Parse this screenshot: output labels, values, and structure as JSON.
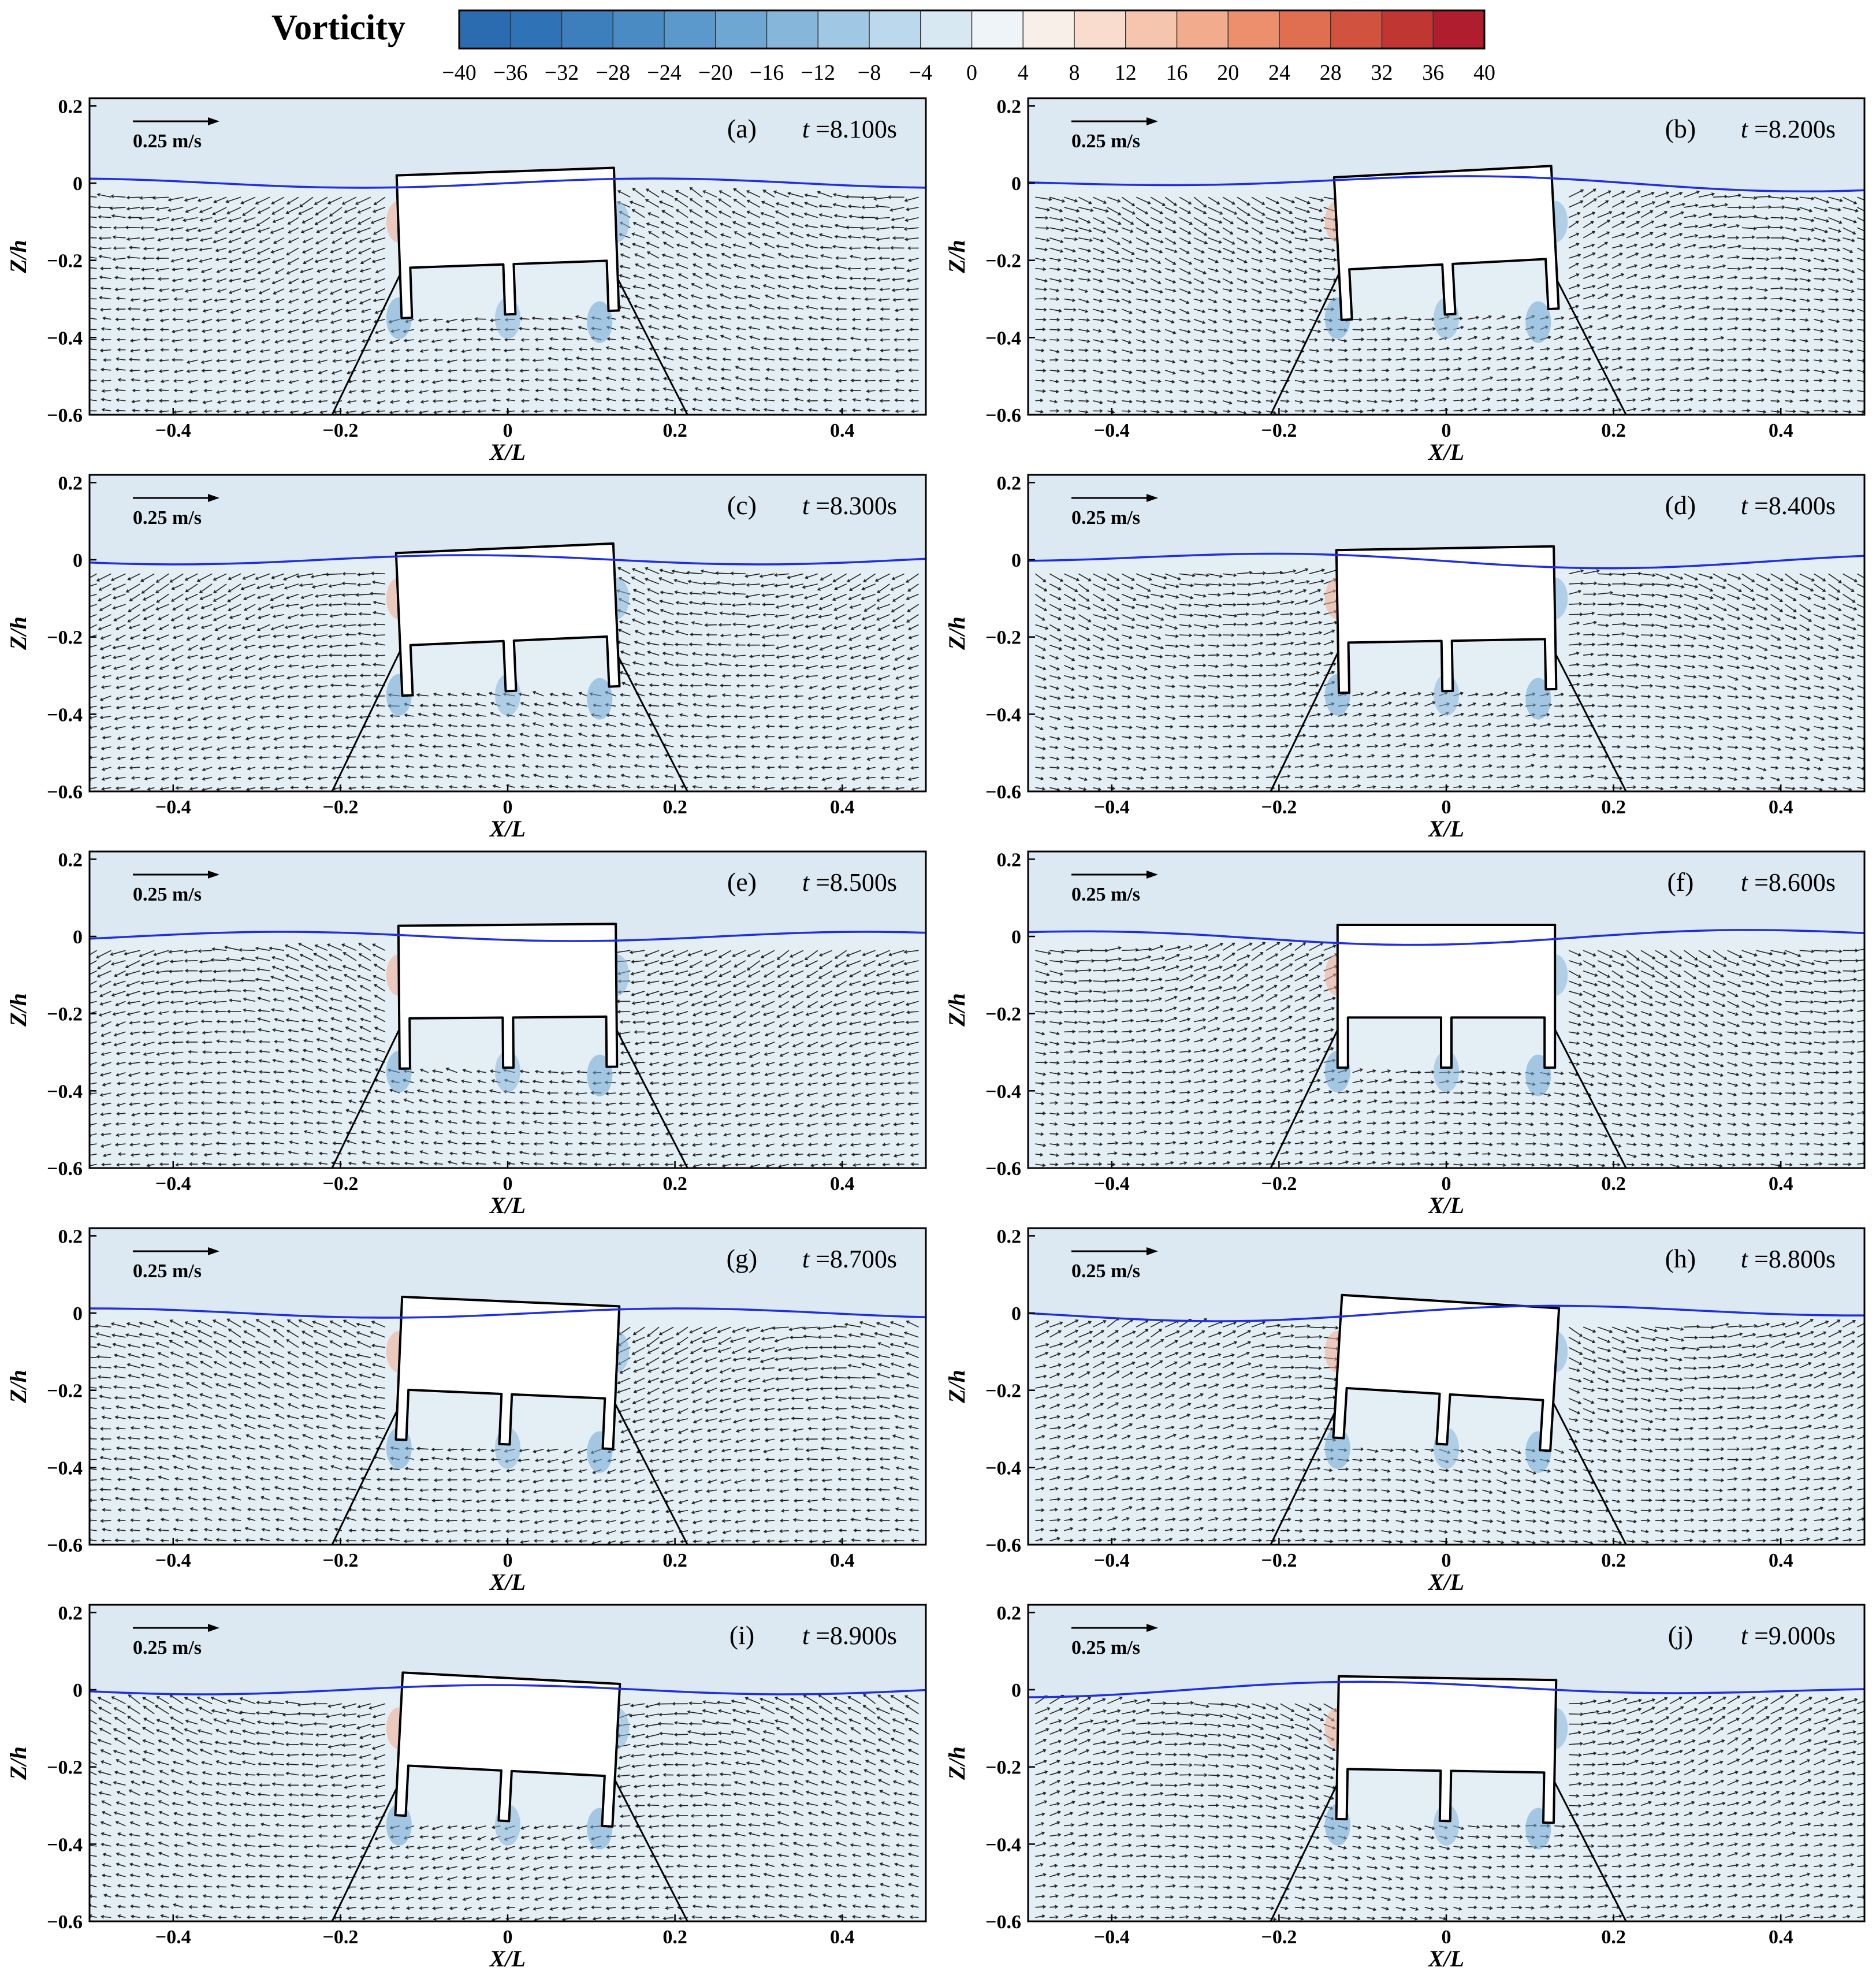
{
  "chart_data": {
    "type": "vector-field",
    "colorbar": {
      "title": "Vorticity",
      "min": -40,
      "max": 40,
      "ticks": [
        -40,
        -36,
        -32,
        -28,
        -24,
        -20,
        -16,
        -12,
        -8,
        -4,
        0,
        4,
        8,
        12,
        16,
        20,
        24,
        28,
        32,
        36,
        40
      ],
      "tick_labels": [
        "−40",
        "−36",
        "−32",
        "−28",
        "−24",
        "−20",
        "−16",
        "−12",
        "−8",
        "−4",
        "0",
        "4",
        "8",
        "12",
        "16",
        "20",
        "24",
        "28",
        "32",
        "36",
        "40"
      ],
      "colors": [
        "#2b6cb0",
        "#2f72b5",
        "#3d7fbd",
        "#4a8bc4",
        "#5b98cb",
        "#6fa7d3",
        "#86b7db",
        "#a0c7e3",
        "#bcd8ec",
        "#d7e8f3",
        "#eef4f8",
        "#f8efe9",
        "#f9dccd",
        "#f6c5ad",
        "#f2ab8c",
        "#ec8f6c",
        "#e06f51",
        "#d1533f",
        "#c03633",
        "#b01d2e"
      ]
    },
    "xaxis": {
      "label": "X/L",
      "range": [
        -0.5,
        0.5
      ],
      "ticks": [
        -0.4,
        -0.2,
        0,
        0.2,
        0.4
      ],
      "tick_labels": [
        "−0.4",
        "−0.2",
        "0",
        "0.2",
        "0.4"
      ]
    },
    "yaxis": {
      "label": "Z/h",
      "range": [
        -0.6,
        0.22
      ],
      "ticks": [
        0.2,
        0,
        -0.2,
        -0.4,
        -0.6
      ],
      "tick_labels": [
        "0.2",
        "0",
        "−0.2",
        "−0.4",
        "−0.6"
      ]
    },
    "reference_vector": "0.25 m/s",
    "panels": [
      {
        "label": "(a)",
        "time": "=8.100s",
        "roll": 2.0
      },
      {
        "label": "(b)",
        "time": "=8.200s",
        "roll": 3.0
      },
      {
        "label": "(c)",
        "time": "=8.300s",
        "roll": 2.5
      },
      {
        "label": "(d)",
        "time": "=8.400s",
        "roll": 1.0
      },
      {
        "label": "(e)",
        "time": "=8.500s",
        "roll": 0.5
      },
      {
        "label": "(f)",
        "time": "=8.600s",
        "roll": 0.0
      },
      {
        "label": "(g)",
        "time": "=8.700s",
        "roll": -2.5
      },
      {
        "label": "(h)",
        "time": "=8.800s",
        "roll": -3.5
      },
      {
        "label": "(i)",
        "time": "=8.900s",
        "roll": -3.0
      },
      {
        "label": "(j)",
        "time": "=9.000s",
        "roll": -1.0
      }
    ]
  },
  "time_prefix": "t"
}
